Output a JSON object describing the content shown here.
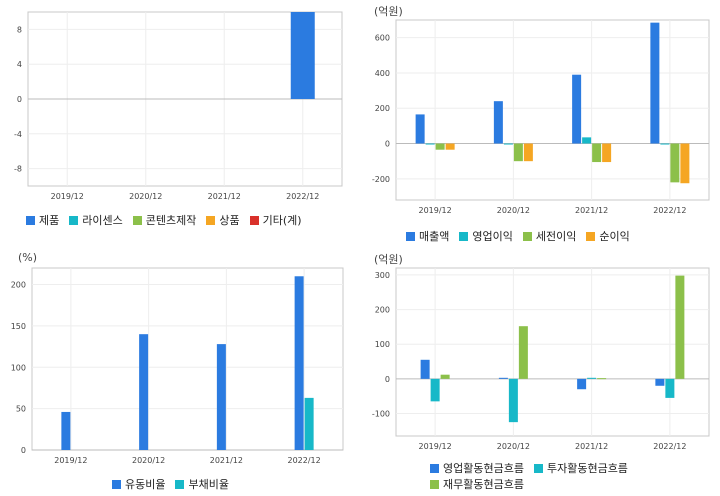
{
  "colors": {
    "blue": "#2b7be0",
    "cyan": "#17b8c8",
    "green": "#8cc04a",
    "orange": "#f5a623",
    "red": "#d9312b"
  },
  "chart_data": [
    {
      "id": "c1",
      "type": "bar",
      "unit": "",
      "categories": [
        "2019/12",
        "2020/12",
        "2021/12",
        "2022/12"
      ],
      "yticks": [
        8,
        4,
        0,
        -4,
        -8
      ],
      "ylim": [
        -10,
        10
      ],
      "series": [
        {
          "name": "제품",
          "color": "#2b7be0",
          "values": [
            null,
            null,
            null,
            10
          ]
        },
        {
          "name": "라이센스",
          "color": "#17b8c8",
          "values": [
            null,
            null,
            null,
            null
          ]
        },
        {
          "name": "콘텐츠제작",
          "color": "#8cc04a",
          "values": [
            null,
            null,
            null,
            null
          ]
        },
        {
          "name": "상품",
          "color": "#f5a623",
          "values": [
            null,
            null,
            null,
            null
          ]
        },
        {
          "name": "기타(계)",
          "color": "#d9312b",
          "values": [
            null,
            null,
            null,
            null
          ]
        }
      ]
    },
    {
      "id": "c2",
      "type": "bar",
      "unit": "(억원)",
      "categories": [
        "2019/12",
        "2020/12",
        "2021/12",
        "2022/12"
      ],
      "yticks": [
        600,
        400,
        200,
        0,
        -200
      ],
      "ylim": [
        -320,
        700
      ],
      "series": [
        {
          "name": "매출액",
          "color": "#2b7be0",
          "values": [
            165,
            240,
            390,
            685
          ]
        },
        {
          "name": "영업이익",
          "color": "#17b8c8",
          "values": [
            -5,
            -5,
            35,
            -2
          ]
        },
        {
          "name": "세전이익",
          "color": "#8cc04a",
          "values": [
            -35,
            -100,
            -105,
            -220
          ]
        },
        {
          "name": "순이익",
          "color": "#f5a623",
          "values": [
            -35,
            -100,
            -105,
            -225
          ]
        }
      ]
    },
    {
      "id": "c3",
      "type": "bar",
      "unit": "(%)",
      "categories": [
        "2019/12",
        "2020/12",
        "2021/12",
        "2022/12"
      ],
      "yticks": [
        200,
        150,
        100,
        50,
        0
      ],
      "ylim": [
        0,
        220
      ],
      "series": [
        {
          "name": "유동비율",
          "color": "#2b7be0",
          "values": [
            46,
            140,
            128,
            210
          ]
        },
        {
          "name": "부채비율",
          "color": "#17b8c8",
          "values": [
            null,
            null,
            null,
            63
          ]
        }
      ]
    },
    {
      "id": "c4",
      "type": "bar",
      "unit": "(억원)",
      "categories": [
        "2019/12",
        "2020/12",
        "2021/12",
        "2022/12"
      ],
      "yticks": [
        300,
        200,
        100,
        0,
        -100
      ],
      "ylim": [
        -165,
        320
      ],
      "series": [
        {
          "name": "영업활동현금흐름",
          "color": "#2b7be0",
          "values": [
            55,
            3,
            -30,
            -20
          ]
        },
        {
          "name": "투자활동현금흐름",
          "color": "#17b8c8",
          "values": [
            -65,
            -125,
            3,
            -55
          ]
        },
        {
          "name": "재무활동현금흐름",
          "color": "#8cc04a",
          "values": [
            12,
            152,
            2,
            298
          ]
        }
      ]
    }
  ]
}
